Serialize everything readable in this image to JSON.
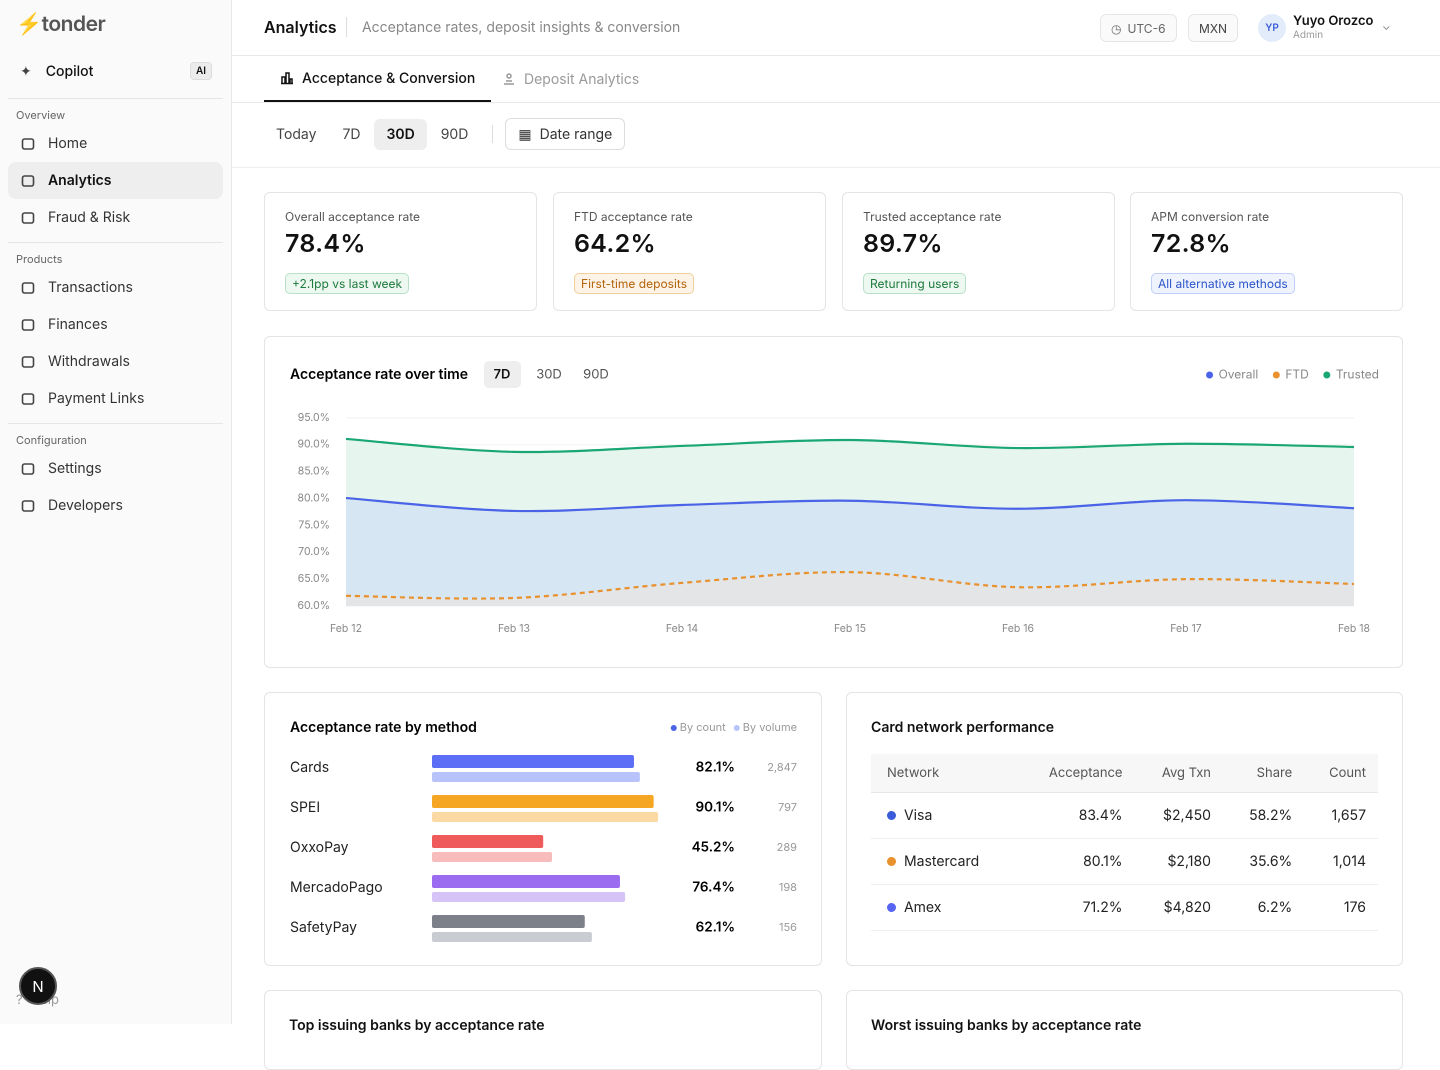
{
  "sidebar": {
    "logo": "tonder",
    "copilot": "Copilot",
    "copilot_badge": "AI",
    "sections": [
      {
        "title": "Overview",
        "items": [
          "Home",
          "Analytics",
          "Fraud & Risk"
        ]
      },
      {
        "title": "Products",
        "items": [
          "Transactions",
          "Finances",
          "Withdrawals",
          "Payment Links"
        ]
      },
      {
        "title": "Configuration",
        "items": [
          "Settings",
          "Developers"
        ]
      }
    ],
    "help": "Help",
    "avatar": "N"
  },
  "header": {
    "title": "Analytics",
    "subtitle": "Acceptance rates, deposit insights & conversion",
    "timezone": "UTC-6",
    "currency": "MXN",
    "user": {
      "initials": "YP",
      "name": "Yuyo Orozco",
      "role": "Admin"
    }
  },
  "tabs": [
    "Acceptance & Conversion",
    "Deposit Analytics"
  ],
  "ranges": [
    "Today",
    "7D",
    "30D",
    "90D"
  ],
  "date_range": "Date range",
  "kpis": [
    {
      "label": "Overall acceptance rate",
      "value": "78.4%",
      "note": "+2.1pp vs last week"
    },
    {
      "label": "FTD acceptance rate",
      "value": "64.2%",
      "note": "First-time deposits"
    },
    {
      "label": "Trusted acceptance rate",
      "value": "89.7%",
      "note": "Returning users"
    },
    {
      "label": "APM conversion rate",
      "value": "72.8%",
      "note": "All alternative methods"
    }
  ],
  "chart_data": [
    {
      "type": "line",
      "title": "Acceptance rate over time",
      "range_tabs": [
        "7D",
        "30D",
        "90D"
      ],
      "categories": [
        "Feb 12",
        "Feb 13",
        "Feb 14",
        "Feb 15",
        "Feb 16",
        "Feb 17",
        "Feb 18"
      ],
      "series": [
        {
          "name": "Overall",
          "color": "#4a63e7",
          "area_color": "#d6e6f2",
          "dashed": false,
          "values": [
            80.1,
            77.7,
            78.8,
            79.6,
            78.1,
            79.7,
            78.2
          ]
        },
        {
          "name": "FTD",
          "color": "#e8912d",
          "area_color": "#e3e5e7",
          "dashed": true,
          "values": [
            61.9,
            61.5,
            64.3,
            66.3,
            63.5,
            65.0,
            64.1
          ]
        },
        {
          "name": "Trusted",
          "color": "#1aa774",
          "area_color": "#e6f6ee",
          "dashed": false,
          "values": [
            91.1,
            88.7,
            89.8,
            90.9,
            89.4,
            90.2,
            89.6
          ]
        }
      ],
      "ylim": [
        60,
        95
      ],
      "yticks": [
        {
          "value": 60,
          "label": "60.0%"
        },
        {
          "value": 65,
          "label": "65.0%"
        },
        {
          "value": 70,
          "label": "70.0%"
        },
        {
          "value": 75,
          "label": "75.0%"
        },
        {
          "value": 80,
          "label": "80.0%"
        },
        {
          "value": 85,
          "label": "85.0%"
        },
        {
          "value": 90,
          "label": "90.0%"
        },
        {
          "value": 95,
          "label": "95.0%"
        }
      ],
      "grid": true
    },
    {
      "type": "hbar",
      "title": "Acceptance rate by method",
      "categories": [
        "Cards",
        "SPEI",
        "OxxoPay",
        "MercadoPago",
        "SafetyPay"
      ],
      "series": [
        {
          "name": "By count",
          "color": "#4a63e7",
          "colors": [
            "#5b6ef5",
            "#f5a623",
            "#ef5b5b",
            "#9b6cf0",
            "#7b8089"
          ],
          "values": [
            82.1,
            90.1,
            45.2,
            76.4,
            62.1
          ],
          "value_labels": [
            "82.1%",
            "90.1%",
            "45.2%",
            "76.4%",
            "62.1%"
          ]
        },
        {
          "name": "By volume",
          "color": "#b9c3fb",
          "colors": [
            "#b9c3fb",
            "#fbd9a3",
            "#f9bcbc",
            "#d6c4f8",
            "#c9ccd1"
          ],
          "values": [
            84.5,
            91.9,
            48.8,
            78.5,
            65.0
          ]
        }
      ],
      "counts": [
        "2,847",
        "797",
        "289",
        "198",
        "156"
      ],
      "xlim": [
        0,
        100
      ]
    }
  ],
  "table": {
    "title": "Card network performance",
    "columns": [
      "Network",
      "Acceptance",
      "Avg Txn",
      "Share",
      "Count"
    ],
    "dot_colors": [
      "#3b5bdb",
      "#e8912d",
      "#5865f2"
    ],
    "rows": [
      [
        "Visa",
        "83.4%",
        "$2,450",
        "58.2%",
        "1,657"
      ],
      [
        "Mastercard",
        "80.1%",
        "$2,180",
        "35.6%",
        "1,014"
      ],
      [
        "Amex",
        "71.2%",
        "$4,820",
        "6.2%",
        "176"
      ]
    ]
  },
  "bottom_cards": [
    "Top issuing banks by acceptance rate",
    "Worst issuing banks by acceptance rate"
  ]
}
